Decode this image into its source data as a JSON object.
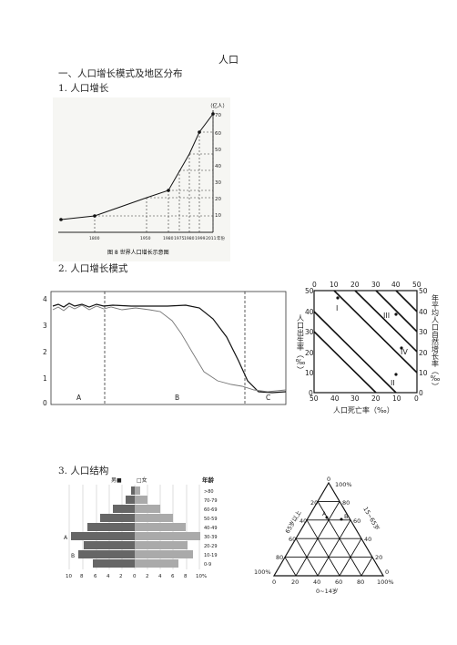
{
  "doc": {
    "title": "人口",
    "section1": "一、人口增长模式及地区分布",
    "item1": "1.  人口增长",
    "item2": "2.  人口增长模式",
    "item3": "3.  人口结构"
  },
  "fig1": {
    "unit": "（亿人）",
    "yticks": [
      "70",
      "60",
      "50",
      "40",
      "30",
      "20",
      "10"
    ],
    "xticks": [
      "1800",
      "1950",
      "1980",
      "1975",
      "1980",
      "1999",
      "2011"
    ],
    "xunit": "年份",
    "caption": "图 8   世界人口增长示意图"
  },
  "fig2": {
    "yticks": [
      "4",
      "3",
      "2",
      "1",
      "0"
    ],
    "stages": [
      "A",
      "B",
      "C"
    ]
  },
  "fig3": {
    "top_ticks": [
      "0",
      "10",
      "20",
      "30",
      "40",
      "50"
    ],
    "bottom_ticks": [
      "50",
      "40",
      "30",
      "20",
      "10",
      "0"
    ],
    "left_ticks": [
      "50",
      "40",
      "30",
      "20",
      "10",
      "0"
    ],
    "right_ticks": [
      "50",
      "40",
      "30",
      "20",
      "10",
      "0"
    ],
    "left_label": "人口出生率（‰）",
    "right_label": "年平均人口自然增长率（‰）",
    "bottom_label": "人口死亡率（‰）",
    "points": [
      "I",
      "II",
      "III",
      "IV"
    ]
  },
  "fig4": {
    "legend_male": "男■",
    "legend_female": "□女",
    "age_header": "年龄",
    "ages": [
      ">80",
      "70-79",
      "60-69",
      "50-59",
      "40-49",
      "30-39",
      "20-29",
      "10-19",
      "0-9"
    ],
    "xticks": [
      "10",
      "8",
      "6",
      "4",
      "2",
      "0",
      "2",
      "4",
      "6",
      "8",
      "10%"
    ],
    "markers": [
      "A",
      "B"
    ]
  },
  "fig5": {
    "top": "0",
    "top_pct": "100%",
    "bottom_ticks": [
      "0",
      "20",
      "40",
      "60",
      "80",
      "100%"
    ],
    "left_ticks": [
      "20",
      "40",
      "60",
      "80"
    ],
    "right_ticks": [
      "80",
      "60",
      "40",
      "20"
    ],
    "corner_left": "100%",
    "corner_right": "0",
    "left_label": "65岁以上",
    "right_label": "15~65岁",
    "bottom_label": "0~14岁",
    "points": [
      "A",
      "B"
    ]
  }
}
